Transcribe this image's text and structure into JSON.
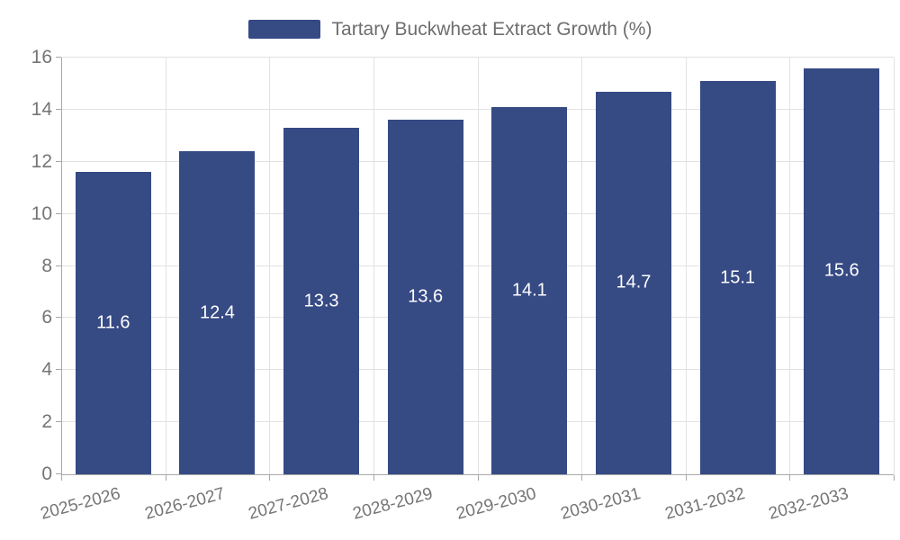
{
  "chart_data": {
    "type": "bar",
    "title": "Tartary Buckwheat Extract Growth (%)",
    "legend": {
      "label": "Tartary Buckwheat Extract Growth (%)",
      "position": "top-center"
    },
    "categories": [
      "2025-2026",
      "2026-2027",
      "2027-2028",
      "2028-2029",
      "2029-2030",
      "2030-2031",
      "2031-2032",
      "2032-2033"
    ],
    "series": [
      {
        "name": "Tartary Buckwheat Extract Growth (%)",
        "values": [
          11.6,
          12.4,
          13.3,
          13.6,
          14.1,
          14.7,
          15.1,
          15.6
        ]
      }
    ],
    "value_labels": [
      "11.6",
      "12.4",
      "13.3",
      "13.6",
      "14.1",
      "14.7",
      "15.1",
      "15.6"
    ],
    "xlabel": "",
    "ylabel": "",
    "ylim": [
      0,
      16
    ],
    "yticks": [
      0,
      2,
      4,
      6,
      8,
      10,
      12,
      14,
      16
    ],
    "grid": true,
    "xtick_rotation_deg": -15,
    "colors": {
      "bar": "#364A84",
      "bar_value_text": "#ffffff",
      "axis_line": "#a8a8a8",
      "grid_line": "#e2e2e2",
      "tick_text": "#757575",
      "legend_text": "#6e6e6e",
      "background": "#ffffff"
    }
  }
}
